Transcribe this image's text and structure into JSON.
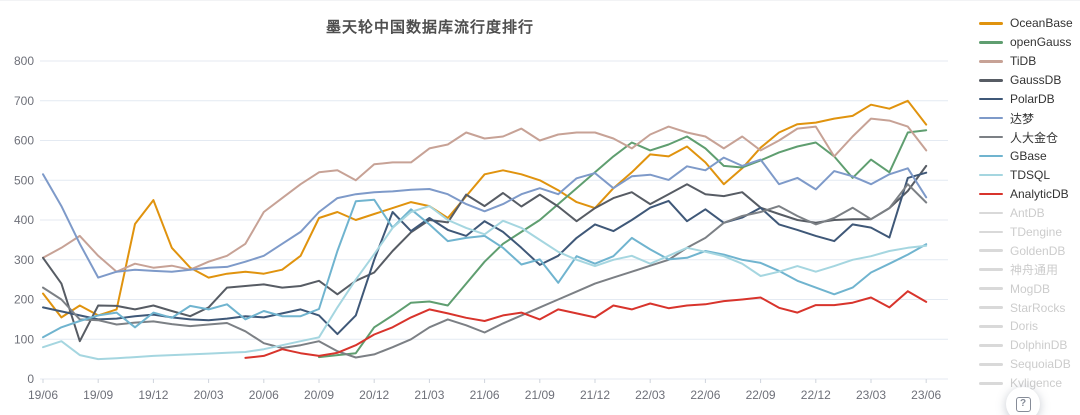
{
  "chart": {
    "title": "墨天轮中国数据库流行度排行"
  },
  "legend": {
    "disabled_line_color": "#d9d9d9",
    "disabled_text_color": "#cccccc",
    "active_text_color": "#333333",
    "items": [
      {
        "label": "OceanBase",
        "color": "#e0930e",
        "active": true
      },
      {
        "label": "openGauss",
        "color": "#5f9e70",
        "active": true
      },
      {
        "label": "TiDB",
        "color": "#c7a296",
        "active": true
      },
      {
        "label": "GaussDB",
        "color": "#575c64",
        "active": true
      },
      {
        "label": "PolarDB",
        "color": "#3f5878",
        "active": true
      },
      {
        "label": "达梦",
        "color": "#7e9ac9",
        "active": true
      },
      {
        "label": "人大金仓",
        "color": "#7c8085",
        "active": true
      },
      {
        "label": "GBase",
        "color": "#70b4cf",
        "active": true
      },
      {
        "label": "TDSQL",
        "color": "#a5d6e0",
        "active": true
      },
      {
        "label": "AnalyticDB",
        "color": "#d8342c",
        "active": true
      },
      {
        "label": "AntDB",
        "color": "#d9d9d9",
        "active": false
      },
      {
        "label": "TDengine",
        "color": "#d9d9d9",
        "active": false
      },
      {
        "label": "GoldenDB",
        "color": "#d9d9d9",
        "active": false
      },
      {
        "label": "神舟通用",
        "color": "#d9d9d9",
        "active": false
      },
      {
        "label": "MogDB",
        "color": "#d9d9d9",
        "active": false
      },
      {
        "label": "StarRocks",
        "color": "#d9d9d9",
        "active": false
      },
      {
        "label": "Doris",
        "color": "#d9d9d9",
        "active": false
      },
      {
        "label": "DolphinDB",
        "color": "#d9d9d9",
        "active": false
      },
      {
        "label": "SequoiaDB",
        "color": "#d9d9d9",
        "active": false
      },
      {
        "label": "Kyligence",
        "color": "#d9d9d9",
        "active": false
      }
    ]
  },
  "help_button": {
    "glyph": "?"
  },
  "chart_data": {
    "type": "line",
    "title": "墨天轮中国数据库流行度排行",
    "x_resolution": "monthly",
    "x_start_month": "2019/06",
    "x_end_month": "2023/06",
    "x_tick_labels": [
      "19/06",
      "19/09",
      "19/12",
      "20/03",
      "20/06",
      "20/09",
      "20/12",
      "21/03",
      "21/06",
      "21/09",
      "21/12",
      "22/03",
      "22/06",
      "22/09",
      "22/12",
      "23/03",
      "23/06"
    ],
    "ylim": [
      0,
      800
    ],
    "y_step": 100,
    "y_tick_labels": [
      "0",
      "100",
      "200",
      "300",
      "400",
      "500",
      "600",
      "700",
      "800"
    ],
    "grid": true,
    "grid_color": "#e4eaf2",
    "axis_label_color": "#6e7079",
    "legend_position": "right",
    "series": [
      {
        "name": "OceanBase",
        "color": "#e0930e",
        "start_index": 0,
        "values": [
          215,
          155,
          185,
          160,
          175,
          390,
          450,
          330,
          280,
          255,
          265,
          270,
          265,
          275,
          310,
          405,
          420,
          400,
          415,
          430,
          445,
          435,
          405,
          460,
          515,
          525,
          515,
          500,
          475,
          445,
          430,
          480,
          520,
          565,
          560,
          585,
          545,
          490,
          530,
          582,
          620,
          641,
          645,
          655,
          662,
          690,
          680,
          700,
          640
        ]
      },
      {
        "name": "openGauss",
        "color": "#5f9e70",
        "start_index": 15,
        "values": [
          55,
          60,
          65,
          130,
          160,
          192,
          195,
          185,
          240,
          295,
          340,
          370,
          400,
          440,
          480,
          520,
          560,
          595,
          575,
          590,
          610,
          580,
          536,
          532,
          550,
          570,
          585,
          595,
          560,
          506,
          552,
          520,
          620,
          626
        ]
      },
      {
        "name": "TiDB",
        "color": "#c7a296",
        "start_index": 0,
        "values": [
          305,
          330,
          360,
          310,
          270,
          290,
          280,
          285,
          275,
          295,
          310,
          340,
          420,
          455,
          490,
          520,
          525,
          500,
          540,
          545,
          545,
          580,
          590,
          620,
          605,
          610,
          630,
          600,
          615,
          620,
          620,
          605,
          580,
          615,
          635,
          620,
          610,
          580,
          610,
          575,
          600,
          630,
          635,
          560,
          610,
          655,
          650,
          635,
          575
        ]
      },
      {
        "name": "GaussDB",
        "color": "#575c64",
        "start_index": 0,
        "values": [
          305,
          240,
          95,
          185,
          184,
          175,
          185,
          171,
          158,
          180,
          230,
          234,
          238,
          230,
          234,
          247,
          213,
          247,
          268,
          322,
          369,
          400,
          394,
          464,
          435,
          468,
          434,
          464,
          434,
          397,
          430,
          455,
          470,
          440,
          465,
          490,
          465,
          460,
          470,
          431,
          415,
          400,
          393,
          400,
          402,
          402,
          430,
          473,
          536
        ]
      },
      {
        "name": "PolarDB",
        "color": "#3f5878",
        "start_index": 0,
        "values": [
          180,
          170,
          160,
          150,
          152,
          158,
          162,
          155,
          150,
          148,
          152,
          158,
          155,
          165,
          175,
          160,
          113,
          160,
          300,
          420,
          372,
          405,
          375,
          360,
          397,
          370,
          330,
          287,
          310,
          355,
          389,
          372,
          400,
          431,
          448,
          397,
          427,
          393,
          406,
          431,
          389,
          375,
          360,
          347,
          389,
          381,
          356,
          506,
          519
        ]
      },
      {
        "name": "达梦",
        "color": "#7e9ac9",
        "start_index": 0,
        "values": [
          515,
          435,
          340,
          255,
          270,
          275,
          272,
          270,
          275,
          280,
          282,
          295,
          310,
          340,
          370,
          420,
          455,
          465,
          470,
          472,
          476,
          478,
          465,
          440,
          422,
          440,
          465,
          480,
          465,
          505,
          518,
          480,
          510,
          514,
          501,
          535,
          525,
          557,
          536,
          552,
          490,
          506,
          477,
          523,
          510,
          490,
          515,
          530,
          457
        ]
      },
      {
        "name": "人大金仓",
        "color": "#7c8085",
        "start_index": 0,
        "values": [
          230,
          200,
          150,
          148,
          137,
          142,
          145,
          138,
          133,
          137,
          141,
          120,
          90,
          78,
          85,
          95,
          70,
          54,
          62,
          80,
          100,
          130,
          150,
          135,
          117,
          140,
          160,
          180,
          200,
          220,
          240,
          255,
          270,
          285,
          300,
          330,
          355,
          393,
          410,
          420,
          435,
          410,
          389,
          405,
          431,
          402,
          430,
          490,
          444
        ]
      },
      {
        "name": "GBase",
        "color": "#70b4cf",
        "start_index": 0,
        "values": [
          105,
          130,
          146,
          160,
          167,
          130,
          167,
          154,
          184,
          175,
          188,
          150,
          171,
          158,
          158,
          176,
          322,
          447,
          451,
          381,
          427,
          389,
          347,
          355,
          360,
          330,
          288,
          301,
          242,
          309,
          290,
          309,
          355,
          326,
          301,
          305,
          322,
          313,
          300,
          292,
          272,
          247,
          230,
          213,
          230,
          268,
          290,
          313,
          339
        ]
      },
      {
        "name": "TDSQL",
        "color": "#a5d6e0",
        "start_index": 0,
        "values": [
          80,
          95,
          60,
          50,
          52,
          55,
          58,
          60,
          62,
          64,
          66,
          68,
          75,
          85,
          95,
          105,
          180,
          250,
          314,
          380,
          420,
          435,
          400,
          380,
          364,
          398,
          380,
          350,
          320,
          300,
          284,
          300,
          310,
          290,
          310,
          330,
          320,
          309,
          290,
          259,
          270,
          284,
          270,
          284,
          300,
          309,
          322,
          330,
          335
        ]
      },
      {
        "name": "AnalyticDB",
        "color": "#d8342c",
        "start_index": 11,
        "values": [
          53,
          58,
          75,
          65,
          58,
          66,
          85,
          112,
          130,
          155,
          175,
          165,
          154,
          146,
          160,
          167,
          150,
          175,
          165,
          155,
          185,
          175,
          190,
          178,
          185,
          188,
          196,
          200,
          205,
          179,
          167,
          186,
          186,
          192,
          205,
          180,
          221,
          194
        ]
      }
    ]
  }
}
